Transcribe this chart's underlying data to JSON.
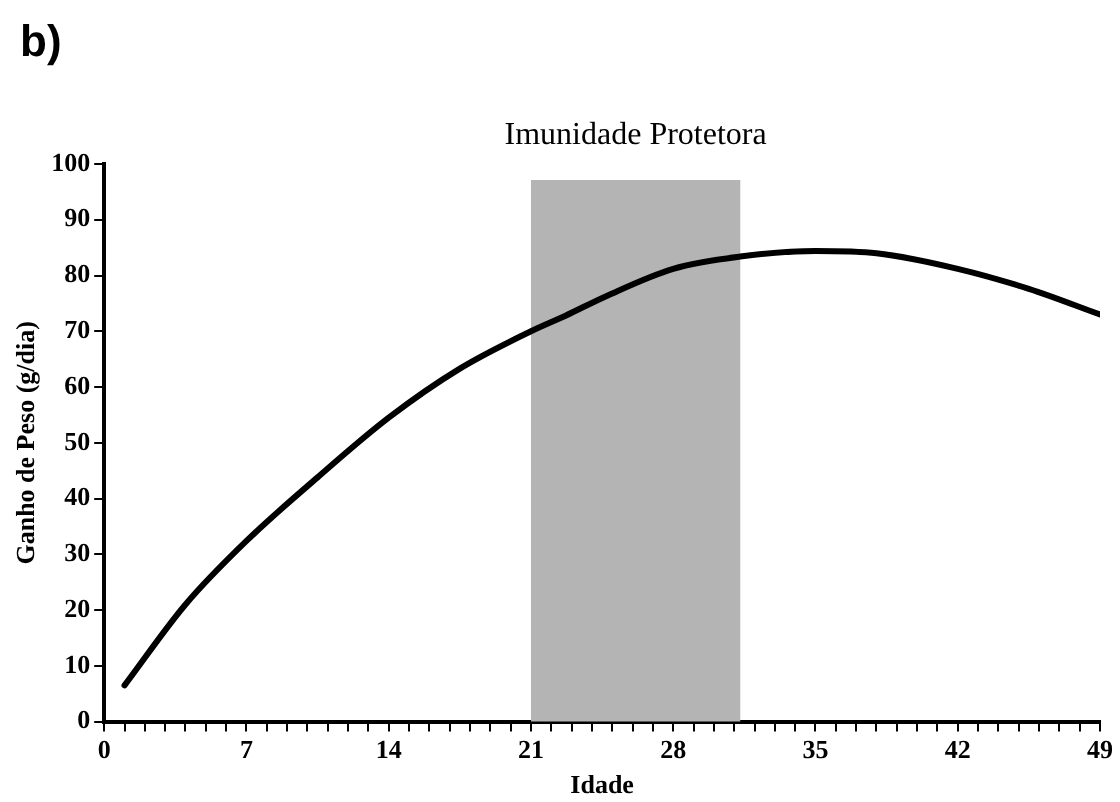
{
  "chart_data": {
    "type": "line",
    "xlabel": "Idade",
    "ylabel": "Ganho de Peso (g/dia)",
    "annotations": [
      "b)"
    ],
    "series": [
      {
        "color": "#000000",
        "x": [
          1,
          4,
          7,
          10.5,
          14,
          17.5,
          21,
          22.7,
          24.7,
          28,
          31.3,
          35,
          38,
          42,
          45.5,
          49
        ],
        "values": [
          6.5,
          21,
          32.4,
          43.8,
          54.5,
          63.3,
          70,
          72.8,
          76.3,
          81.2,
          83.4,
          84.4,
          84,
          81.2,
          77.6,
          73
        ]
      }
    ],
    "bands": [
      {
        "axis": "x",
        "from": 21,
        "to": 31.3,
        "label": "Imunidade Protetora",
        "color": "#b4b4b4"
      }
    ],
    "xlim": [
      0,
      49
    ],
    "xticks": [
      0,
      {
        "value": 1,
        "label": null
      },
      {
        "value": 2,
        "label": null
      },
      {
        "value": 3,
        "label": null
      },
      {
        "value": 4,
        "label": null
      },
      {
        "value": 5,
        "label": null
      },
      {
        "value": 6,
        "label": null
      },
      7,
      {
        "value": 8,
        "label": null
      },
      {
        "value": 9,
        "label": null
      },
      {
        "value": 10,
        "label": null
      },
      {
        "value": 11,
        "label": null
      },
      {
        "value": 12,
        "label": null
      },
      {
        "value": 13,
        "label": null
      },
      14,
      {
        "value": 15,
        "label": null
      },
      {
        "value": 16,
        "label": null
      },
      {
        "value": 17,
        "label": null
      },
      {
        "value": 18,
        "label": null
      },
      {
        "value": 19,
        "label": null
      },
      {
        "value": 20,
        "label": null
      },
      21,
      {
        "value": 22,
        "label": null
      },
      {
        "value": 23,
        "label": null
      },
      {
        "value": 24,
        "label": null
      },
      {
        "value": 25,
        "label": null
      },
      {
        "value": 26,
        "label": null
      },
      {
        "value": 27,
        "label": null
      },
      28,
      {
        "value": 29,
        "label": null
      },
      {
        "value": 30,
        "label": null
      },
      {
        "value": 31,
        "label": null
      },
      {
        "value": 32,
        "label": null
      },
      {
        "value": 33,
        "label": null
      },
      {
        "value": 34,
        "label": null
      },
      35,
      {
        "value": 36,
        "label": null
      },
      {
        "value": 37,
        "label": null
      },
      {
        "value": 38,
        "label": null
      },
      {
        "value": 39,
        "label": null
      },
      {
        "value": 40,
        "label": null
      },
      {
        "value": 41,
        "label": null
      },
      42,
      {
        "value": 43,
        "label": null
      },
      {
        "value": 44,
        "label": null
      },
      {
        "value": 45,
        "label": null
      },
      {
        "value": 46,
        "label": null
      },
      {
        "value": 47,
        "label": null
      },
      {
        "value": 48,
        "label": null
      },
      49
    ],
    "ylim": [
      0,
      100
    ],
    "yticks": [
      0,
      10,
      20,
      30,
      40,
      50,
      60,
      70,
      80,
      90,
      100
    ],
    "grid": false,
    "legend": false,
    "marker": "none",
    "line_style": "solid"
  }
}
